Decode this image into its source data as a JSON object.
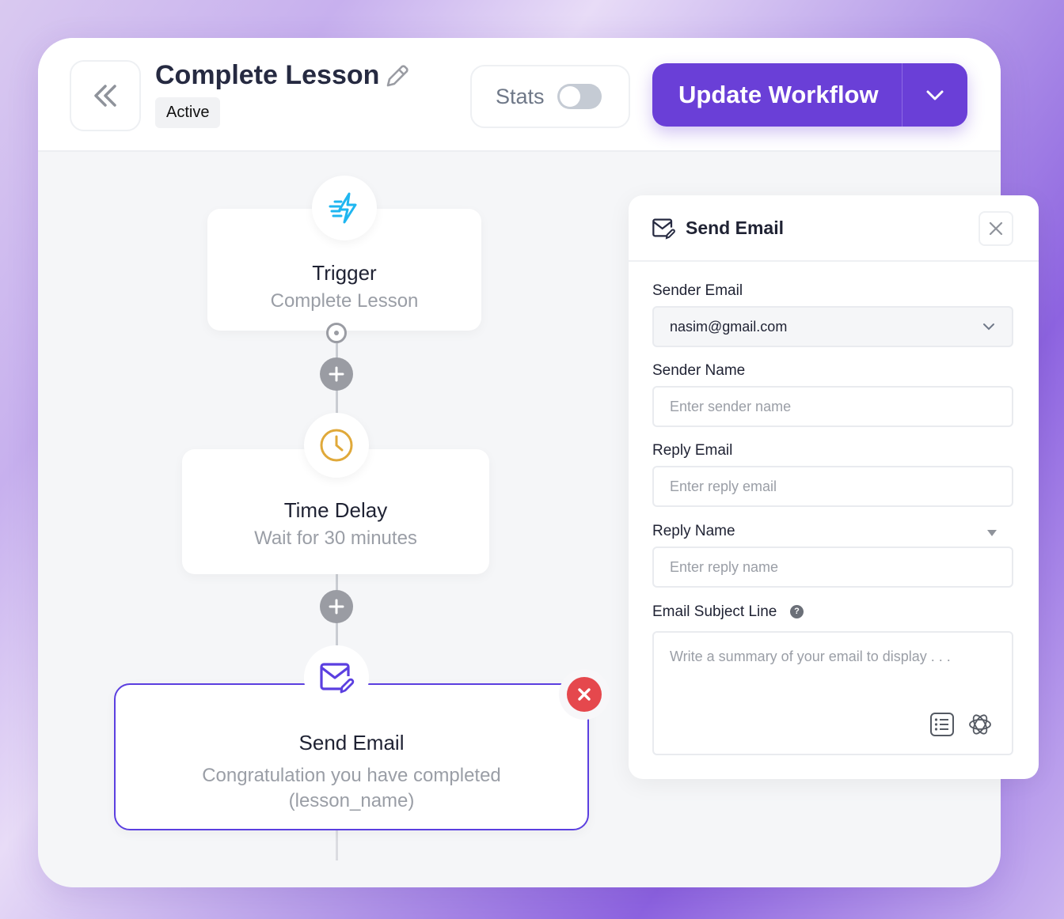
{
  "header": {
    "title": "Complete Lesson",
    "status_badge": "Active",
    "stats_label": "Stats",
    "stats_enabled": false,
    "update_button": "Update Workflow"
  },
  "workflow": {
    "nodes": [
      {
        "title": "Trigger",
        "subtitle": "Complete Lesson",
        "icon": "lightning-icon",
        "icon_color": "#1fb6f0"
      },
      {
        "title": "Time Delay",
        "subtitle": "Wait for 30 minutes",
        "icon": "clock-icon",
        "icon_color": "#e0a93a"
      },
      {
        "title": "Send Email",
        "subtitle_line1": "Congratulation you have completed",
        "subtitle_line2": "(lesson_name)",
        "icon": "mail-edit-icon",
        "icon_color": "#5b3fe0",
        "selected": true
      }
    ]
  },
  "panel": {
    "title": "Send Email",
    "sender_email": {
      "label": "Sender Email",
      "value": "nasim@gmail.com"
    },
    "sender_name": {
      "label": "Sender Name",
      "placeholder": "Enter sender name"
    },
    "reply_email": {
      "label": "Reply Email",
      "placeholder": "Enter reply email"
    },
    "reply_name": {
      "label": "Reply Name",
      "placeholder": "Enter reply name"
    },
    "subject": {
      "label": "Email Subject Line",
      "placeholder": "Write a summary of your email to display . . ."
    }
  },
  "colors": {
    "accent": "#6a3fd7",
    "danger": "#e5484d"
  }
}
